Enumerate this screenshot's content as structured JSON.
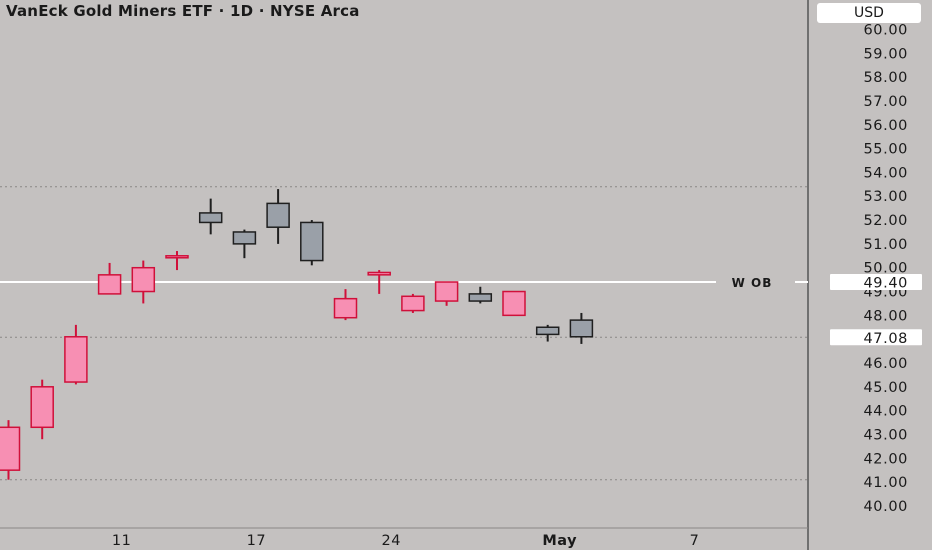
{
  "header": {
    "title": "VanEck Gold Miners ETF · 1D · NYSE Arca",
    "currency": "USD"
  },
  "colors": {
    "background": "#c4c1c0",
    "up_fill": "#f78fb3",
    "up_stroke": "#d0103a",
    "down_fill": "#9aa0a8",
    "down_stroke": "#1f1f1f",
    "level_line": "#ffffff",
    "dotted_line": "#8a8786"
  },
  "chart_data": {
    "type": "candlestick",
    "ylim": [
      39.4,
      60.7
    ],
    "y_ticks": [
      "60.00",
      "59.00",
      "58.00",
      "57.00",
      "56.00",
      "55.00",
      "54.00",
      "53.00",
      "52.00",
      "51.00",
      "50.00",
      "49.00",
      "48.00",
      "47.00",
      "46.00",
      "45.00",
      "44.00",
      "43.00",
      "42.00",
      "41.00",
      "40.00"
    ],
    "x_labels": [
      {
        "label": "11",
        "bar": 3
      },
      {
        "label": "17",
        "bar": 7
      },
      {
        "label": "24",
        "bar": 11
      },
      {
        "label": "May",
        "bar": 16
      },
      {
        "label": "7",
        "bar": 20
      }
    ],
    "candles": [
      {
        "bar": 0,
        "o": 41.5,
        "h": 43.6,
        "l": 41.1,
        "c": 43.3
      },
      {
        "bar": 1,
        "o": 43.3,
        "h": 45.3,
        "l": 42.8,
        "c": 45.0
      },
      {
        "bar": 2,
        "o": 45.2,
        "h": 47.6,
        "l": 45.1,
        "c": 47.1
      },
      {
        "bar": 3,
        "o": 48.9,
        "h": 50.2,
        "l": 48.9,
        "c": 49.7
      },
      {
        "bar": 4,
        "o": 49.0,
        "h": 50.3,
        "l": 48.5,
        "c": 50.0
      },
      {
        "bar": 5,
        "o": 50.5,
        "h": 50.7,
        "l": 49.9,
        "c": 50.5
      },
      {
        "bar": 6,
        "o": 52.3,
        "h": 52.9,
        "l": 51.4,
        "c": 51.9
      },
      {
        "bar": 7,
        "o": 51.5,
        "h": 51.6,
        "l": 50.4,
        "c": 51.0
      },
      {
        "bar": 8,
        "o": 52.7,
        "h": 53.3,
        "l": 51.0,
        "c": 51.7
      },
      {
        "bar": 9,
        "o": 51.9,
        "h": 52.0,
        "l": 50.1,
        "c": 50.3
      },
      {
        "bar": 10,
        "o": 47.9,
        "h": 49.1,
        "l": 47.8,
        "c": 48.7
      },
      {
        "bar": 11,
        "o": 49.7,
        "h": 49.9,
        "l": 48.9,
        "c": 49.8
      },
      {
        "bar": 12,
        "o": 48.2,
        "h": 48.9,
        "l": 48.1,
        "c": 48.8
      },
      {
        "bar": 13,
        "o": 48.6,
        "h": 49.4,
        "l": 48.4,
        "c": 49.4
      },
      {
        "bar": 14,
        "o": 48.9,
        "h": 49.2,
        "l": 48.5,
        "c": 48.6
      },
      {
        "bar": 15,
        "o": 48.0,
        "h": 49.0,
        "l": 48.0,
        "c": 49.0
      },
      {
        "bar": 16,
        "o": 47.5,
        "h": 47.6,
        "l": 46.9,
        "c": 47.2
      },
      {
        "bar": 17,
        "o": 47.8,
        "h": 48.1,
        "l": 46.8,
        "c": 47.1
      }
    ],
    "dotted_levels": [
      53.4,
      47.08,
      41.1
    ],
    "level_line": {
      "value": 49.4,
      "label": "W OB",
      "price_label": "49.40"
    },
    "price_tag": {
      "value": 47.08,
      "label": "47.08"
    }
  }
}
